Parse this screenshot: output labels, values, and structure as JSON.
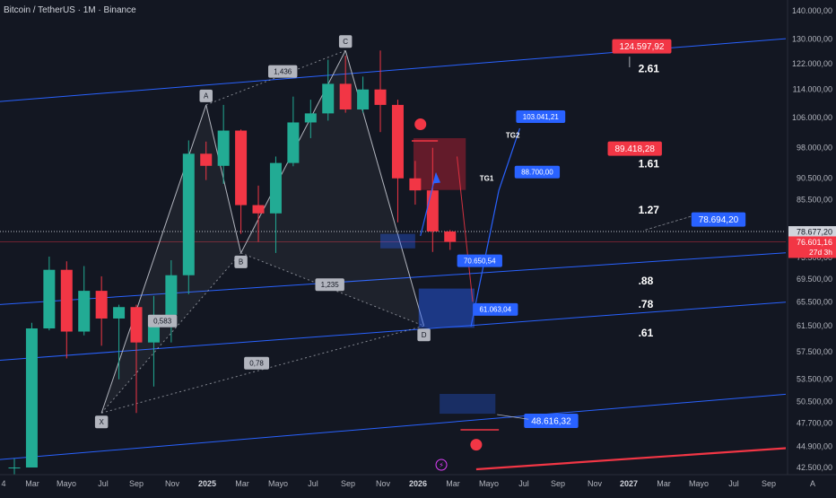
{
  "title": "Bitcoin / TetherUS · 1M · Binance",
  "colors": {
    "background": "#131722",
    "up": "#22ab94",
    "down": "#f23645",
    "channel": "#2962ff",
    "pattern": "#b2b5be",
    "axis_text": "#b2b5be",
    "box_blue": "#1e3a8a",
    "box_red": "#7f1d2d"
  },
  "chart_data": {
    "type": "candlestick",
    "symbol": "BTCUSDT",
    "interval": "1M",
    "exchange": "Binance",
    "y_axis": {
      "scale": "log",
      "tick_labels": [
        "140.000,00",
        "130.000,00",
        "122.000,00",
        "114.000,00",
        "106.000,00",
        "98.000,00",
        "90.500,00",
        "85.500,00",
        "73.500,00",
        "69.500,00",
        "65.500,00",
        "61.500,00",
        "57.500,00",
        "53.500,00",
        "50.500,00",
        "47.700,00",
        "44.900,00",
        "42.500,00"
      ]
    },
    "x_axis": {
      "tick_labels": [
        "4",
        "Mar",
        "Mayo",
        "Jul",
        "Sep",
        "Nov",
        "2025",
        "Mar",
        "Mayo",
        "Jul",
        "Sep",
        "Nov",
        "2026",
        "Mar",
        "Mayo",
        "Jul",
        "Sep",
        "Nov",
        "2027",
        "Mar",
        "Mayo",
        "Jul",
        "Sep"
      ]
    },
    "price_tags": {
      "last": "78.677,20",
      "current": "76.601,16",
      "countdown": "27d 3h"
    },
    "candles": [
      {
        "o": 42500,
        "h": 43500,
        "l": 38600,
        "c": 42500
      },
      {
        "o": 42500,
        "h": 62000,
        "l": 42500,
        "c": 61100
      },
      {
        "o": 61100,
        "h": 73700,
        "l": 60800,
        "c": 71200
      },
      {
        "o": 71200,
        "h": 72800,
        "l": 56500,
        "c": 60600
      },
      {
        "o": 60600,
        "h": 71900,
        "l": 60000,
        "c": 67400
      },
      {
        "o": 67400,
        "h": 70000,
        "l": 58400,
        "c": 62700
      },
      {
        "o": 62700,
        "h": 65000,
        "l": 53500,
        "c": 64600
      },
      {
        "o": 64600,
        "h": 65000,
        "l": 49000,
        "c": 58900
      },
      {
        "o": 58900,
        "h": 66500,
        "l": 52500,
        "c": 63300
      },
      {
        "o": 63300,
        "h": 73000,
        "l": 58900,
        "c": 70200
      },
      {
        "o": 70200,
        "h": 99800,
        "l": 66800,
        "c": 96400
      },
      {
        "o": 96400,
        "h": 99500,
        "l": 90000,
        "c": 93400
      },
      {
        "o": 93400,
        "h": 109500,
        "l": 89100,
        "c": 102400
      },
      {
        "o": 102400,
        "h": 102700,
        "l": 78200,
        "c": 84300
      },
      {
        "o": 84300,
        "h": 88700,
        "l": 76600,
        "c": 82500
      },
      {
        "o": 82500,
        "h": 95700,
        "l": 74400,
        "c": 94100
      },
      {
        "o": 94100,
        "h": 111900,
        "l": 93300,
        "c": 104600
      },
      {
        "o": 104600,
        "h": 111000,
        "l": 100400,
        "c": 107100
      },
      {
        "o": 107100,
        "h": 123200,
        "l": 105100,
        "c": 115700
      },
      {
        "o": 115700,
        "h": 124500,
        "l": 107300,
        "c": 108200
      },
      {
        "o": 108200,
        "h": 117900,
        "l": 107300,
        "c": 114000
      },
      {
        "o": 114000,
        "h": 126200,
        "l": 102000,
        "c": 109500
      },
      {
        "o": 109500,
        "h": 111000,
        "l": 80600,
        "c": 90400
      },
      {
        "o": 90400,
        "h": 94600,
        "l": 84400,
        "c": 87600
      },
      {
        "o": 87600,
        "h": 97900,
        "l": 74600,
        "c": 78700
      },
      {
        "o": 78700,
        "h": 79000,
        "l": 75000,
        "c": 76601
      }
    ],
    "harmonic_pattern": {
      "points": [
        {
          "label": "X",
          "price": 49000
        },
        {
          "label": "A",
          "price": 109500
        },
        {
          "label": "B",
          "price": 74400
        },
        {
          "label": "C",
          "price": 126200
        },
        {
          "label": "D",
          "price": 61500
        }
      ],
      "ratios": [
        "0,583",
        "1,436",
        "1,235",
        "0,78"
      ]
    },
    "fib_levels": [
      ".61",
      ".78",
      ".88",
      "1.27",
      "1.61",
      "2.61"
    ],
    "price_labels": [
      {
        "text": "124.597,92",
        "kind": "red"
      },
      {
        "text": "89.418,28",
        "kind": "red"
      },
      {
        "text": "78.694,20",
        "kind": "blue"
      },
      {
        "text": "103.041,21",
        "kind": "blue"
      },
      {
        "text": "88.700,00",
        "kind": "blue"
      },
      {
        "text": "70.650,54",
        "kind": "blue"
      },
      {
        "text": "61.063,04",
        "kind": "blue"
      },
      {
        "text": "48.616,32",
        "kind": "blue"
      }
    ],
    "targets": [
      "TG1",
      "TG2"
    ],
    "corner_label": "A"
  }
}
